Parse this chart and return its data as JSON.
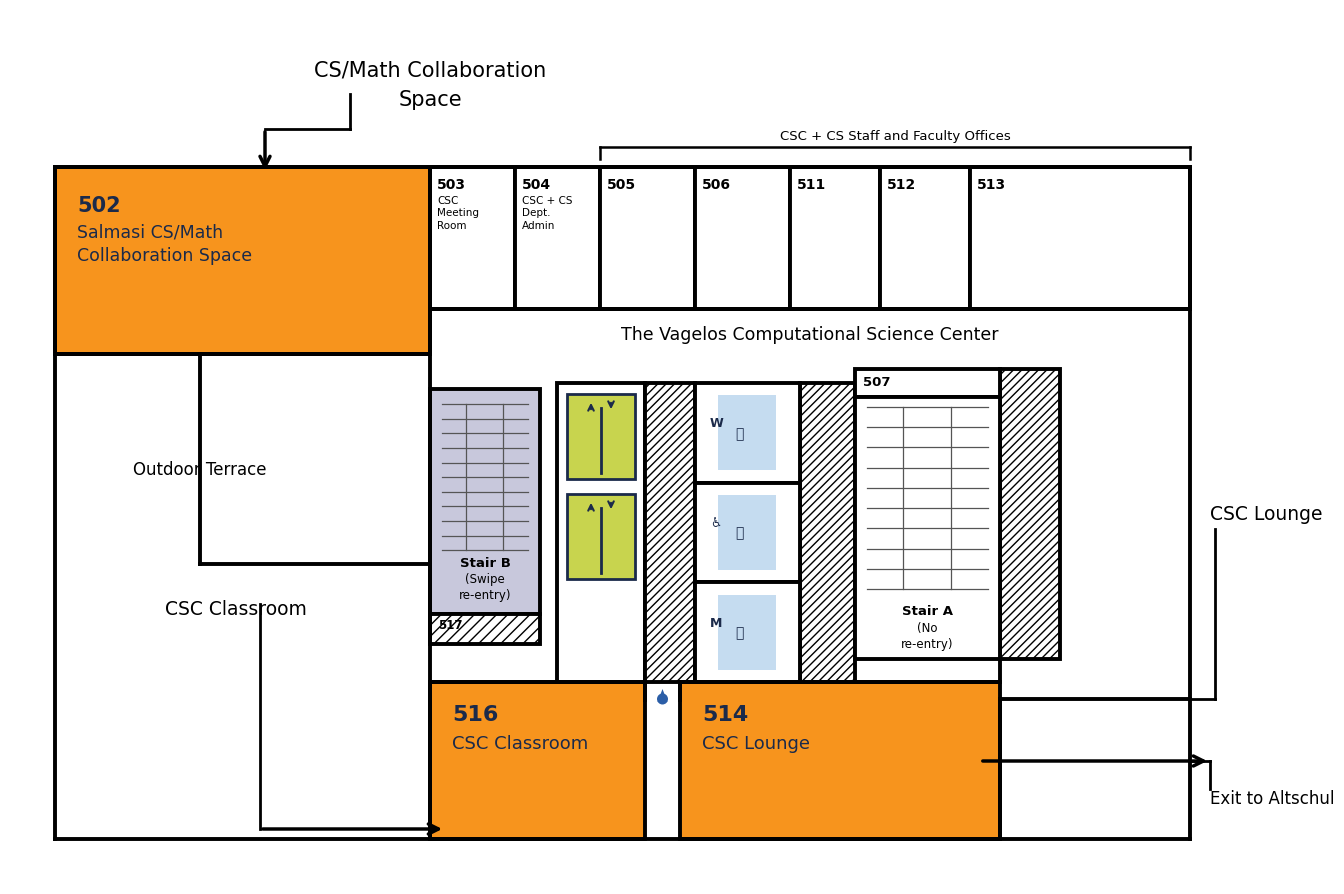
{
  "orange": "#F7941D",
  "dark_navy": "#1B2A4A",
  "light_purple": "#C8C8DC",
  "light_yellow_green": "#C8D44E",
  "light_blue": "#C5DCF0",
  "bg": "#FFFFFF",
  "annotation_cs_math_line1": "CS/Math Collaboration",
  "annotation_cs_math_line2": "Space",
  "annotation_classroom": "CSC Classroom",
  "annotation_lounge": "CSC Lounge",
  "annotation_exit": "Exit to Altschul",
  "vagelos_label": "The Vagelos Computational Science Center",
  "outdoor_terrace": "Outdoor Terrace",
  "csc_staff_label": "CSC + CS Staff and Faculty Offices"
}
